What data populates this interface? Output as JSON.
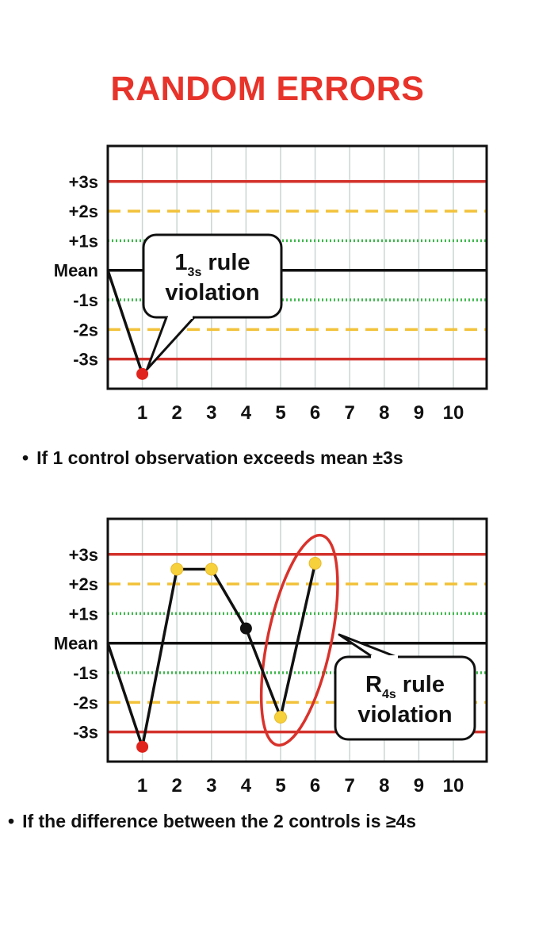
{
  "title": "RANDOM ERRORS",
  "colors": {
    "title": "#e8332a",
    "line_3s": "#d3322c",
    "line_2s": "#f2c23a",
    "line_1s": "#3cb84a",
    "mean": "#111111",
    "grid": "#c9d6d2",
    "point_red": "#e0231c",
    "point_yellow": "#f7d13c",
    "point_black": "#111111",
    "highlight_ellipse": "#d9322b"
  },
  "chart_data": [
    {
      "type": "line",
      "title": "",
      "y_levels": [
        {
          "label": "+3s",
          "value": 3,
          "style": "solid",
          "color": "#d3322c"
        },
        {
          "label": "+2s",
          "value": 2,
          "style": "dashed",
          "color": "#f2c23a"
        },
        {
          "label": "+1s",
          "value": 1,
          "style": "dotted",
          "color": "#3cb84a"
        },
        {
          "label": "Mean",
          "value": 0,
          "style": "solid",
          "color": "#111111"
        },
        {
          "label": "-1s",
          "value": -1,
          "style": "dotted",
          "color": "#3cb84a"
        },
        {
          "label": "-2s",
          "value": -2,
          "style": "dashed",
          "color": "#f2c23a"
        },
        {
          "label": "-3s",
          "value": -3,
          "style": "solid",
          "color": "#d3322c"
        }
      ],
      "x_ticks": [
        "1",
        "2",
        "3",
        "4",
        "5",
        "6",
        "7",
        "8",
        "9",
        "10"
      ],
      "ylim": [
        -4,
        4.2
      ],
      "series": [
        {
          "x": [
            0,
            1
          ],
          "y": [
            0,
            -3.5
          ],
          "point_colors": [
            null,
            "#e0231c"
          ]
        }
      ],
      "callout": {
        "main": "1",
        "sub": "3s",
        "line1_rest": "rule",
        "line2": "violation"
      }
    },
    {
      "type": "line",
      "title": "",
      "y_levels": [
        {
          "label": "+3s",
          "value": 3,
          "style": "solid",
          "color": "#d3322c"
        },
        {
          "label": "+2s",
          "value": 2,
          "style": "dashed",
          "color": "#f2c23a"
        },
        {
          "label": "+1s",
          "value": 1,
          "style": "dotted",
          "color": "#3cb84a"
        },
        {
          "label": "Mean",
          "value": 0,
          "style": "solid",
          "color": "#111111"
        },
        {
          "label": "-1s",
          "value": -1,
          "style": "dotted",
          "color": "#3cb84a"
        },
        {
          "label": "-2s",
          "value": -2,
          "style": "dashed",
          "color": "#f2c23a"
        },
        {
          "label": "-3s",
          "value": -3,
          "style": "solid",
          "color": "#d3322c"
        }
      ],
      "x_ticks": [
        "1",
        "2",
        "3",
        "4",
        "5",
        "6",
        "7",
        "8",
        "9",
        "10"
      ],
      "ylim": [
        -4,
        4.2
      ],
      "series": [
        {
          "x": [
            0,
            1,
            2,
            3,
            4,
            5,
            6
          ],
          "y": [
            0,
            -3.5,
            2.5,
            2.5,
            0.5,
            -2.5,
            2.7
          ],
          "point_colors": [
            null,
            "#e0231c",
            "#f7d13c",
            "#f7d13c",
            "#111111",
            "#f7d13c",
            "#f7d13c"
          ]
        }
      ],
      "highlight": {
        "x_from": 5,
        "x_to": 6
      },
      "callout": {
        "main": "R",
        "sub": "4s",
        "line1_rest": "rule",
        "line2": "violation"
      }
    }
  ],
  "captions": [
    "If 1 control observation exceeds mean ±3s",
    "If the difference between the 2 controls is ≥4s"
  ],
  "bullet": "•"
}
